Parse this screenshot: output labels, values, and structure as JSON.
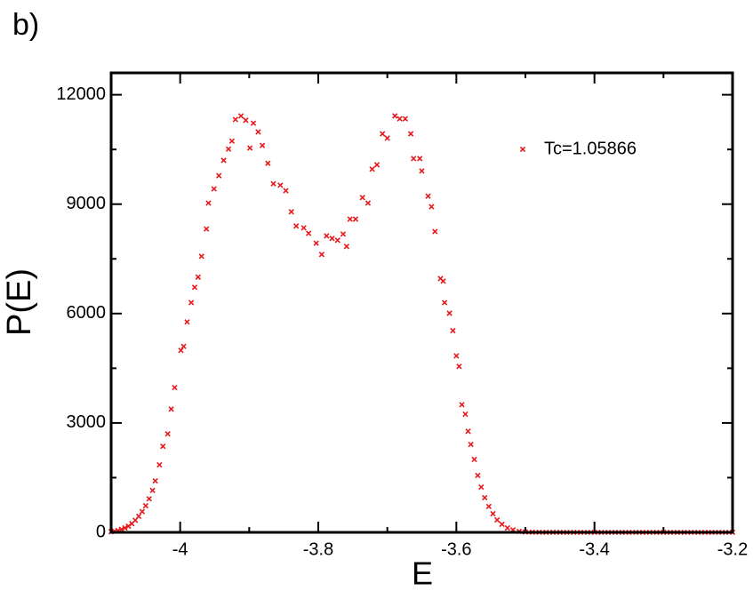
{
  "chart_data": {
    "type": "scatter",
    "panel_label": "b)",
    "xlabel": "E",
    "ylabel": "P(E)",
    "xlim": [
      -4.1,
      -3.2
    ],
    "ylim": [
      0,
      12600
    ],
    "xticks": [
      -4,
      -3.8,
      -3.6,
      -3.4,
      -3.2
    ],
    "yticks": [
      0,
      3000,
      6000,
      9000,
      12000
    ],
    "minor_xticks": [
      -3.9,
      -3.7,
      -3.5,
      -3.3
    ],
    "minor_yticks": [
      1500,
      4500,
      7500,
      10500
    ],
    "legend_position": "upper right",
    "series": [
      {
        "name": "Tc=1.05866",
        "color": "#e8191c",
        "marker": "x",
        "x": [
          -4.1,
          -4.095,
          -4.09,
          -4.085,
          -4.08,
          -4.075,
          -4.07,
          -4.065,
          -4.06,
          -4.055,
          -4.05,
          -4.045,
          -4.04,
          -4.036,
          -4.03,
          -4.025,
          -4.018,
          -4.013,
          -4.008,
          -3.999,
          -3.995,
          -3.99,
          -3.984,
          -3.979,
          -3.974,
          -3.969,
          -3.962,
          -3.959,
          -3.951,
          -3.944,
          -3.937,
          -3.93,
          -3.925,
          -3.92,
          -3.912,
          -3.905,
          -3.899,
          -3.894,
          -3.887,
          -3.881,
          -3.873,
          -3.865,
          -3.855,
          -3.847,
          -3.839,
          -3.832,
          -3.821,
          -3.814,
          -3.803,
          -3.795,
          -3.788,
          -3.78,
          -3.772,
          -3.764,
          -3.759,
          -3.754,
          -3.746,
          -3.736,
          -3.728,
          -3.722,
          -3.715,
          -3.707,
          -3.7,
          -3.689,
          -3.682,
          -3.674,
          -3.666,
          -3.662,
          -3.653,
          -3.65,
          -3.641,
          -3.636,
          -3.631,
          -3.623,
          -3.619,
          -3.617,
          -3.61,
          -3.605,
          -3.6,
          -3.596,
          -3.592,
          -3.587,
          -3.583,
          -3.579,
          -3.574,
          -3.569,
          -3.564,
          -3.559,
          -3.553,
          -3.547,
          -3.541,
          -3.534,
          -3.526,
          -3.518,
          -3.509,
          -3.5,
          -3.49,
          -3.48,
          -3.47,
          -3.46,
          -3.45,
          -3.44,
          -3.43,
          -3.42,
          -3.41,
          -3.4,
          -3.39,
          -3.38,
          -3.37,
          -3.36,
          -3.35,
          -3.34,
          -3.33,
          -3.32,
          -3.31,
          -3.3,
          -3.29,
          -3.28,
          -3.27,
          -3.26,
          -3.25,
          -3.24,
          -3.23,
          -3.22,
          -3.21,
          -3.2
        ],
        "values": [
          20,
          30,
          50,
          80,
          120,
          170,
          240,
          330,
          440,
          570,
          730,
          920,
          1150,
          1410,
          1850,
          2360,
          2700,
          3380,
          3970,
          4990,
          5100,
          5770,
          6300,
          6720,
          7000,
          7570,
          8320,
          9030,
          9420,
          9780,
          10200,
          10510,
          10730,
          11320,
          11420,
          11300,
          10540,
          11220,
          10980,
          10610,
          10120,
          9560,
          9520,
          9370,
          8790,
          8400,
          8350,
          8200,
          7930,
          7620,
          8130,
          8060,
          8010,
          8180,
          7840,
          8590,
          8590,
          9180,
          9030,
          9960,
          10080,
          10930,
          10810,
          11420,
          11340,
          11340,
          10930,
          10250,
          10250,
          9910,
          9220,
          8930,
          8250,
          6960,
          6890,
          6300,
          6010,
          5530,
          4840,
          4550,
          3500,
          3240,
          2770,
          2410,
          2000,
          1560,
          1240,
          950,
          710,
          510,
          340,
          220,
          120,
          70,
          25,
          10,
          5,
          3,
          2,
          1,
          1,
          0,
          0,
          0,
          0,
          0,
          0,
          0,
          0,
          0,
          0,
          0,
          0,
          0,
          0,
          0,
          0,
          0,
          0,
          0,
          0,
          0,
          0,
          0,
          0,
          0
        ]
      }
    ]
  }
}
